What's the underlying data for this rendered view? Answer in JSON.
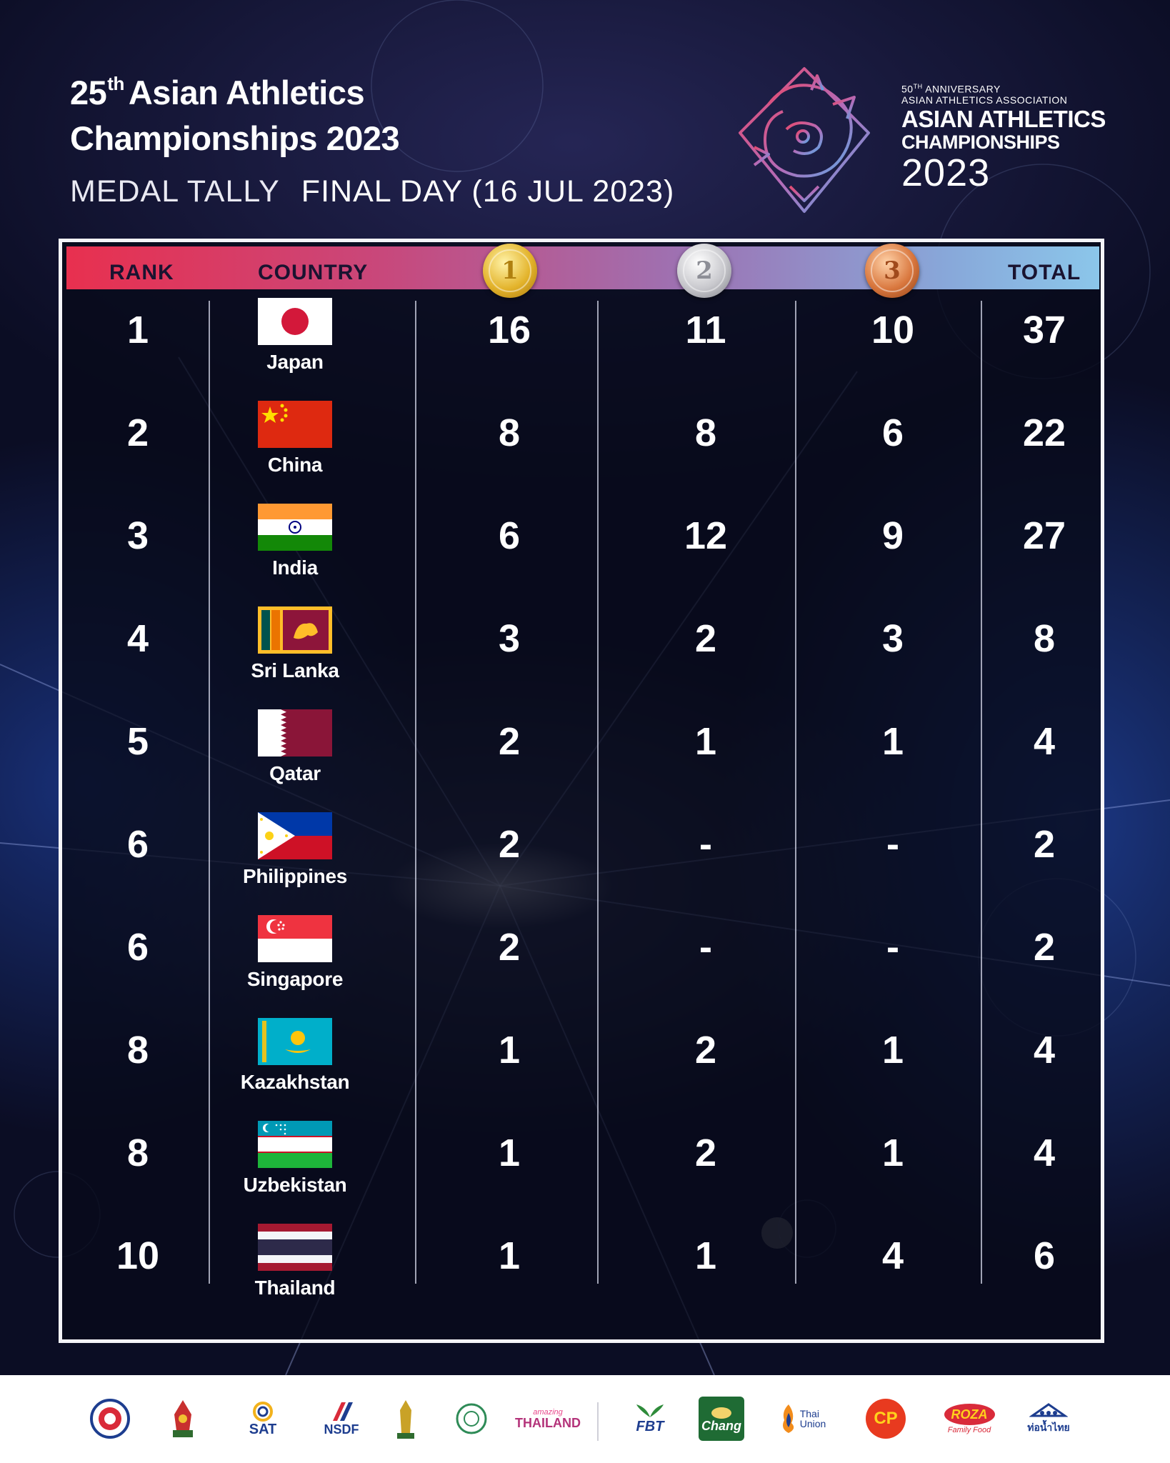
{
  "header": {
    "title_line1_prefix": "25",
    "title_line1_sup": "th",
    "title_line1_rest": "Asian Athletics",
    "title_line2": "Championships 2023",
    "subtitle_left": "MEDAL TALLY",
    "subtitle_right": "FINAL DAY (16 JUL 2023)"
  },
  "brand": {
    "anniv_prefix": "50",
    "anniv_sup": "TH",
    "anniv_rest": " ANNIVERSARY",
    "association": "ASIAN ATHLETICS ASSOCIATION",
    "line1": "ASIAN ATHLETICS",
    "line2": "CHAMPIONSHIPS",
    "year": "2023"
  },
  "table": {
    "headers": {
      "rank": "RANK",
      "country": "COUNTRY",
      "total": "TOTAL"
    },
    "medals": {
      "gold": "1",
      "silver": "2",
      "bronze": "3"
    },
    "rows": [
      {
        "rank": "1",
        "country": "Japan",
        "flag": "japan-flag",
        "gold": "16",
        "silver": "11",
        "bronze": "10",
        "total": "37"
      },
      {
        "rank": "2",
        "country": "China",
        "flag": "china-flag",
        "gold": "8",
        "silver": "8",
        "bronze": "6",
        "total": "22"
      },
      {
        "rank": "3",
        "country": "India",
        "flag": "india-flag",
        "gold": "6",
        "silver": "12",
        "bronze": "9",
        "total": "27"
      },
      {
        "rank": "4",
        "country": "Sri Lanka",
        "flag": "sri-lanka-flag",
        "gold": "3",
        "silver": "2",
        "bronze": "3",
        "total": "8"
      },
      {
        "rank": "5",
        "country": "Qatar",
        "flag": "qatar-flag",
        "gold": "2",
        "silver": "1",
        "bronze": "1",
        "total": "4"
      },
      {
        "rank": "6",
        "country": "Philippines",
        "flag": "philippines-flag",
        "gold": "2",
        "silver": "-",
        "bronze": "-",
        "total": "2"
      },
      {
        "rank": "6",
        "country": "Singapore",
        "flag": "singapore-flag",
        "gold": "2",
        "silver": "-",
        "bronze": "-",
        "total": "2"
      },
      {
        "rank": "8",
        "country": "Kazakhstan",
        "flag": "kazakhstan-flag",
        "gold": "1",
        "silver": "2",
        "bronze": "1",
        "total": "4"
      },
      {
        "rank": "8",
        "country": "Uzbekistan",
        "flag": "uzbekistan-flag",
        "gold": "1",
        "silver": "2",
        "bronze": "1",
        "total": "4"
      },
      {
        "rank": "10",
        "country": "Thailand",
        "flag": "thailand-flag",
        "gold": "1",
        "silver": "1",
        "bronze": "4",
        "total": "6"
      }
    ]
  },
  "sponsors": {
    "sat": "SAT",
    "nsdf": "NSDF",
    "amazing": "amazing",
    "thailand": "THAILAND",
    "fbt": "FBT",
    "chang": "Chang",
    "thai_union_1": "Thai",
    "thai_union_2": "Union",
    "cp": "CP",
    "roza": "ROZA",
    "roza_sub": "Family Food",
    "thai_script": "ท่อน้ำไทย"
  },
  "colors": {
    "background": "#0b0d24",
    "header_bar_start": "#e8304f",
    "header_bar_end": "#8bc6ea",
    "gold": "#e3b32b",
    "silver": "#c7c7cc",
    "bronze": "#d9773e"
  }
}
